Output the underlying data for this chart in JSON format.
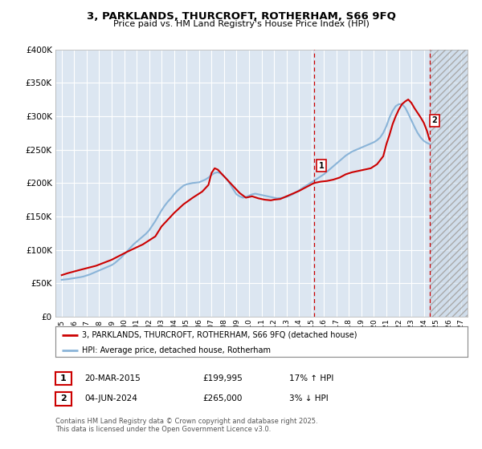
{
  "title": "3, PARKLANDS, THURCROFT, ROTHERHAM, S66 9FQ",
  "subtitle": "Price paid vs. HM Land Registry's House Price Index (HPI)",
  "ylim": [
    0,
    400000
  ],
  "yticks": [
    0,
    50000,
    100000,
    150000,
    200000,
    250000,
    300000,
    350000,
    400000
  ],
  "ytick_labels": [
    "£0",
    "£50K",
    "£100K",
    "£150K",
    "£200K",
    "£250K",
    "£300K",
    "£350K",
    "£400K"
  ],
  "xlim_start": 1994.5,
  "xlim_end": 2027.5,
  "background_color": "#dce6f1",
  "grid_color": "#ffffff",
  "hpi_line_color": "#8ab4d8",
  "price_line_color": "#cc0000",
  "marker1_x": 2015.22,
  "marker1_price": 199995,
  "marker2_x": 2024.45,
  "marker2_price": 265000,
  "legend_label1": "3, PARKLANDS, THURCROFT, ROTHERHAM, S66 9FQ (detached house)",
  "legend_label2": "HPI: Average price, detached house, Rotherham",
  "footnote": "Contains HM Land Registry data © Crown copyright and database right 2025.\nThis data is licensed under the Open Government Licence v3.0.",
  "table_row1": [
    "1",
    "20-MAR-2015",
    "£199,995",
    "17% ↑ HPI"
  ],
  "table_row2": [
    "2",
    "04-JUN-2024",
    "£265,000",
    "3% ↓ HPI"
  ],
  "hpi_data_years": [
    1995.0,
    1995.25,
    1995.5,
    1995.75,
    1996.0,
    1996.25,
    1996.5,
    1996.75,
    1997.0,
    1997.25,
    1997.5,
    1997.75,
    1998.0,
    1998.25,
    1998.5,
    1998.75,
    1999.0,
    1999.25,
    1999.5,
    1999.75,
    2000.0,
    2000.25,
    2000.5,
    2000.75,
    2001.0,
    2001.25,
    2001.5,
    2001.75,
    2002.0,
    2002.25,
    2002.5,
    2002.75,
    2003.0,
    2003.25,
    2003.5,
    2003.75,
    2004.0,
    2004.25,
    2004.5,
    2004.75,
    2005.0,
    2005.25,
    2005.5,
    2005.75,
    2006.0,
    2006.25,
    2006.5,
    2006.75,
    2007.0,
    2007.25,
    2007.5,
    2007.75,
    2008.0,
    2008.25,
    2008.5,
    2008.75,
    2009.0,
    2009.25,
    2009.5,
    2009.75,
    2010.0,
    2010.25,
    2010.5,
    2010.75,
    2011.0,
    2011.25,
    2011.5,
    2011.75,
    2012.0,
    2012.25,
    2012.5,
    2012.75,
    2013.0,
    2013.25,
    2013.5,
    2013.75,
    2014.0,
    2014.25,
    2014.5,
    2014.75,
    2015.0,
    2015.25,
    2015.5,
    2015.75,
    2016.0,
    2016.25,
    2016.5,
    2016.75,
    2017.0,
    2017.25,
    2017.5,
    2017.75,
    2018.0,
    2018.25,
    2018.5,
    2018.75,
    2019.0,
    2019.25,
    2019.5,
    2019.75,
    2020.0,
    2020.25,
    2020.5,
    2020.75,
    2021.0,
    2021.25,
    2021.5,
    2021.75,
    2022.0,
    2022.25,
    2022.5,
    2022.75,
    2023.0,
    2023.25,
    2023.5,
    2023.75,
    2024.0,
    2024.25,
    2024.5
  ],
  "hpi_values": [
    55000,
    55500,
    56000,
    56800,
    57500,
    58200,
    59000,
    60000,
    61500,
    63000,
    65000,
    67000,
    69000,
    71000,
    73000,
    75000,
    77000,
    80000,
    84000,
    88000,
    93000,
    98000,
    103000,
    108000,
    112000,
    116000,
    120000,
    124000,
    129000,
    136000,
    143000,
    151000,
    159000,
    166000,
    172000,
    177000,
    183000,
    188000,
    192000,
    196000,
    198000,
    199000,
    200000,
    200500,
    201000,
    203000,
    205000,
    208000,
    212000,
    215000,
    216000,
    214000,
    210000,
    205000,
    198000,
    190000,
    183000,
    180000,
    178000,
    179000,
    181000,
    183000,
    184000,
    183000,
    182000,
    181000,
    180000,
    179000,
    178000,
    177000,
    177500,
    178000,
    179000,
    181000,
    183000,
    186000,
    189000,
    192000,
    195000,
    198000,
    201000,
    204000,
    207000,
    210000,
    213000,
    217000,
    221000,
    225000,
    229000,
    233000,
    237000,
    241000,
    244000,
    247000,
    249000,
    251000,
    253000,
    255000,
    257000,
    259000,
    261000,
    264000,
    268000,
    275000,
    285000,
    298000,
    308000,
    315000,
    318000,
    318000,
    313000,
    304000,
    294000,
    284000,
    275000,
    268000,
    263000,
    260000,
    258000
  ],
  "price_data_years": [
    1995.0,
    1995.5,
    1996.5,
    1997.75,
    1999.0,
    2000.25,
    2001.5,
    2002.5,
    2003.0,
    2004.0,
    2004.75,
    2005.5,
    2006.25,
    2006.75,
    2007.0,
    2007.25,
    2007.5,
    2008.25,
    2009.25,
    2009.75,
    2010.25,
    2010.75,
    2011.25,
    2011.75,
    2012.0,
    2012.5,
    2013.0,
    2013.5,
    2014.0,
    2014.5,
    2015.22,
    2015.75,
    2016.25,
    2016.75,
    2017.25,
    2017.75,
    2018.25,
    2018.75,
    2019.25,
    2019.75,
    2020.25,
    2020.75,
    2021.0,
    2021.25,
    2021.5,
    2021.75,
    2022.0,
    2022.25,
    2022.5,
    2022.75,
    2023.0,
    2023.25,
    2023.5,
    2023.75,
    2024.0,
    2024.25,
    2024.45
  ],
  "price_values": [
    62000,
    65000,
    70000,
    76000,
    85000,
    97000,
    108000,
    120000,
    135000,
    155000,
    168000,
    178000,
    187000,
    197000,
    215000,
    222000,
    220000,
    205000,
    185000,
    178000,
    180000,
    177000,
    175000,
    174000,
    175000,
    176000,
    180000,
    184000,
    188000,
    193000,
    199995,
    202000,
    203000,
    205000,
    208000,
    213000,
    216000,
    218000,
    220000,
    222000,
    228000,
    240000,
    258000,
    272000,
    288000,
    300000,
    310000,
    318000,
    322000,
    325000,
    320000,
    312000,
    305000,
    298000,
    290000,
    278000,
    265000
  ]
}
